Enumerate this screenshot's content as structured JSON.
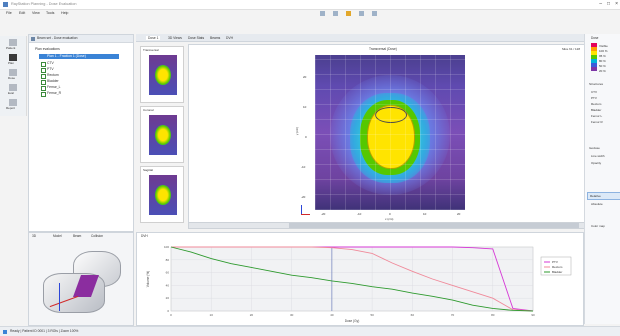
{
  "window": {
    "title": "RayStation Planning - Dose Evaluation",
    "menu": [
      "File",
      "Edit",
      "View",
      "Tools",
      "Help"
    ]
  },
  "left_toolbar": [
    "Patient",
    "Plan",
    "Dose",
    "Eval",
    "Report"
  ],
  "tree": {
    "header": "Beam set - Dose evaluation",
    "root": "Plan evaluations",
    "items": [
      "Plan 1 - Fraction 1 (Dose)",
      "CTV",
      "PTV",
      "Rectum",
      "Bladder",
      "Femur_L",
      "Femur_R"
    ]
  },
  "tabs": [
    "Dose 1",
    "3D Views",
    "Dose Stats",
    "Beams",
    "DVH"
  ],
  "thumbs": {
    "a": "Transversal",
    "b": "Coronal",
    "c": "Sagittal"
  },
  "main_view": {
    "title": "Transversal (Dose)",
    "readout": "Slice 61 / 128",
    "xticks": [
      "-20",
      "-10",
      "0",
      "10",
      "20"
    ],
    "yticks": [
      "20",
      "10",
      "0",
      "-10",
      "-20"
    ],
    "yaxis": "y (cm)",
    "xaxis": "x (cm)"
  },
  "legend_colors": [
    "#e4005a",
    "#ff9b00",
    "#ffe400",
    "#55c800",
    "#00b4d8",
    "#3a5bd9",
    "#7c35a6"
  ],
  "right_panel": {
    "title": "Dose",
    "labels": [
      "Visible",
      "100 %",
      "95 %",
      "80 %",
      "50 %",
      "20 %",
      "Structures",
      "CTV",
      "PTV",
      "Rectum",
      "Bladder",
      "Femur L",
      "Femur R",
      "Isodose",
      "Line width",
      "Opacity",
      "Relative",
      "Absolute",
      "Color map"
    ]
  },
  "dvh": {
    "tab_label": "DVH",
    "chart_data": {
      "type": "line",
      "x": [
        0,
        5,
        10,
        15,
        20,
        25,
        30,
        35,
        40,
        45,
        50,
        55,
        60,
        65,
        70,
        75,
        80,
        85,
        90
      ],
      "series": [
        {
          "name": "PTV",
          "color": "#d63ad6",
          "values": [
            100,
            100,
            100,
            100,
            100,
            100,
            100,
            100,
            100,
            100,
            100,
            100,
            100,
            100,
            100,
            99,
            97,
            4,
            0
          ]
        },
        {
          "name": "Rectum",
          "color": "#f08a9a",
          "values": [
            100,
            100,
            100,
            100,
            100,
            100,
            100,
            100,
            99,
            96,
            90,
            75,
            62,
            50,
            40,
            30,
            20,
            2,
            0
          ]
        },
        {
          "name": "Bladder",
          "color": "#2e9a2e",
          "values": [
            100,
            92,
            82,
            74,
            68,
            62,
            56,
            52,
            47,
            43,
            38,
            34,
            28,
            23,
            17,
            9,
            4,
            1,
            0
          ]
        }
      ],
      "xlabel": "Dose (Gy)",
      "ylabel": "Volume (%)",
      "ylim": [
        0,
        100
      ],
      "xlim": [
        0,
        90
      ],
      "vline": 40,
      "grid": true,
      "legend": "right",
      "xticks": [
        "0",
        "10",
        "20",
        "30",
        "40",
        "50",
        "60",
        "70",
        "80",
        "90"
      ],
      "yticks": [
        "0",
        "20",
        "40",
        "60",
        "80",
        "100"
      ]
    }
  },
  "view3d": {
    "title": "3D",
    "tabs": [
      "Model",
      "Beam",
      "Collision"
    ]
  },
  "status": {
    "text": "Ready | Patient ID 0001 | 3 ROIs | Zoom 100%"
  }
}
